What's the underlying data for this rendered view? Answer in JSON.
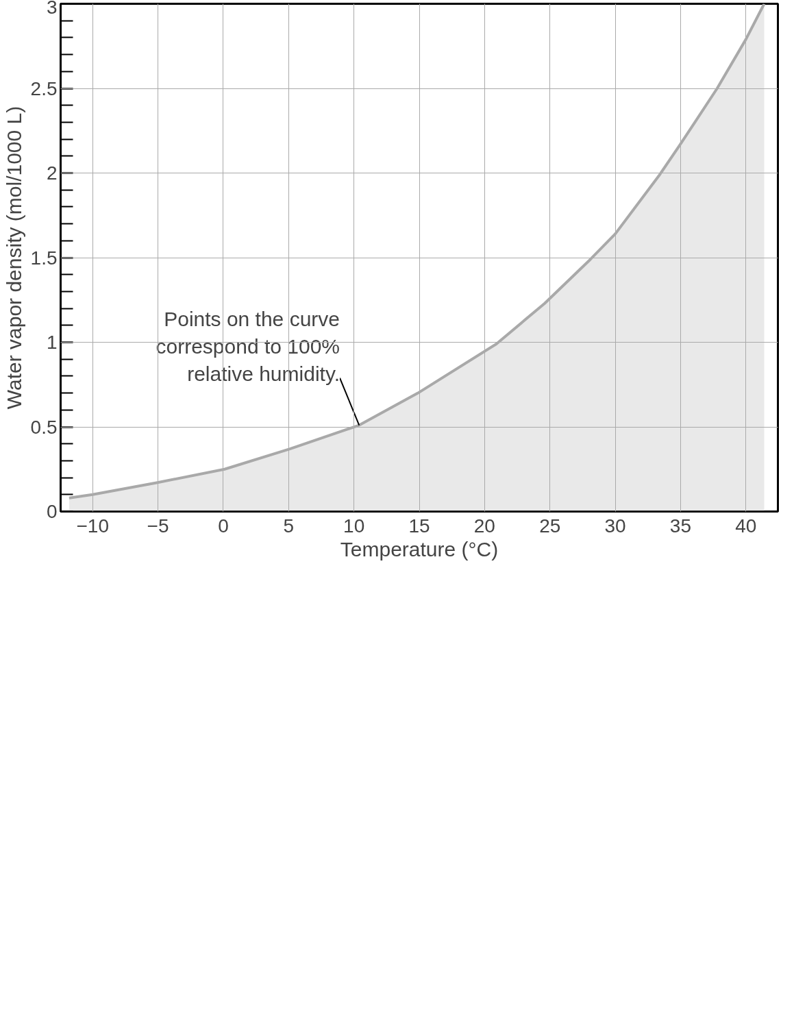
{
  "chart_data": {
    "type": "area",
    "xlabel": "Temperature (°C)",
    "ylabel": "Water vapor density (mol/1000 L)",
    "x": [
      -11.8,
      -10.0,
      -5.1,
      0.1,
      5.1,
      10.4,
      14.9,
      20.9,
      24.6,
      28.1,
      30.0,
      33.4,
      34.9,
      37.8,
      40.0,
      41.4
    ],
    "series": [
      {
        "color": "#a9a9a9",
        "values": [
          0.08,
          0.1,
          0.17,
          0.25,
          0.37,
          0.51,
          0.7,
          0.99,
          1.23,
          1.49,
          1.64,
          1.99,
          2.16,
          2.5,
          2.79,
          3.0
        ]
      }
    ],
    "xlim": [
      -12.45,
      42.45
    ],
    "ylim": [
      0,
      3
    ],
    "xticks": [
      {
        "value": -10,
        "label": "−10"
      },
      {
        "value": -5,
        "label": "−5"
      },
      0,
      5,
      10,
      15,
      20,
      25,
      30,
      35,
      40
    ],
    "yticks": [
      0,
      0.5,
      1,
      1.5,
      2,
      2.5,
      3
    ],
    "grid": true,
    "annotations": [
      {
        "text": "Points on the curve correspond to 100% relative humidity.",
        "x": 10.4,
        "y": 0.51
      }
    ]
  }
}
